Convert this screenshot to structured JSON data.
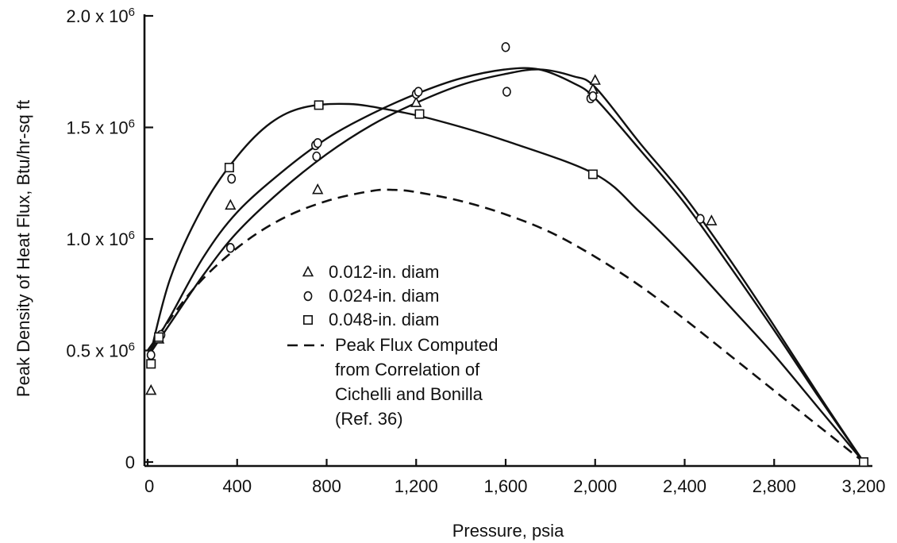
{
  "chart_data": {
    "type": "scatter",
    "xlabel": "Pressure, psia",
    "ylabel": "Peak Density of Heat Flux, Btu/hr-sq ft",
    "xlim": [
      0,
      3200
    ],
    "ylim": [
      0,
      2000000
    ],
    "x_ticks": [
      {
        "value": 0,
        "label": "0"
      },
      {
        "value": 400,
        "label": "400"
      },
      {
        "value": 800,
        "label": "800"
      },
      {
        "value": 1200,
        "label": "1,200"
      },
      {
        "value": 1600,
        "label": "1,600"
      },
      {
        "value": 2000,
        "label": "2,000"
      },
      {
        "value": 2400,
        "label": "2,400"
      },
      {
        "value": 2800,
        "label": "2,800"
      },
      {
        "value": 3200,
        "label": "3,200"
      }
    ],
    "y_ticks": [
      {
        "value": 0,
        "base": "0",
        "exp": ""
      },
      {
        "value": 500000,
        "base": "0.5 x 10",
        "exp": "6"
      },
      {
        "value": 1000000,
        "base": "1.0 x 10",
        "exp": "6"
      },
      {
        "value": 1500000,
        "base": "1.5 x 10",
        "exp": "6"
      },
      {
        "value": 2000000,
        "base": "2.0 x 10",
        "exp": "6"
      }
    ],
    "grid": false,
    "legend_position": "center",
    "series": [
      {
        "name": "0.012-in. diam",
        "marker": "triangle",
        "points": [
          [
            15,
            320000
          ],
          [
            50,
            550000
          ],
          [
            370,
            1150000
          ],
          [
            760,
            1220000
          ],
          [
            1200,
            1610000
          ],
          [
            1990,
            1670000
          ],
          [
            2000,
            1710000
          ],
          [
            2520,
            1080000
          ]
        ]
      },
      {
        "name": "0.024-in. diam",
        "marker": "circle",
        "points": [
          [
            15,
            480000
          ],
          [
            60,
            570000
          ],
          [
            370,
            960000
          ],
          [
            375,
            1270000
          ],
          [
            750,
            1420000
          ],
          [
            755,
            1370000
          ],
          [
            760,
            1430000
          ],
          [
            1200,
            1650000
          ],
          [
            1210,
            1660000
          ],
          [
            1600,
            1860000
          ],
          [
            1605,
            1660000
          ],
          [
            1980,
            1630000
          ],
          [
            1990,
            1640000
          ],
          [
            2470,
            1090000
          ]
        ]
      },
      {
        "name": "0.048-in. diam",
        "marker": "square",
        "points": [
          [
            15,
            440000
          ],
          [
            50,
            560000
          ],
          [
            365,
            1320000
          ],
          [
            765,
            1600000
          ],
          [
            1215,
            1560000
          ],
          [
            1990,
            1290000
          ],
          [
            3200,
            0
          ]
        ]
      },
      {
        "name": "Peak Flux Computed from Correlation of Cichelli and Bonilla (Ref. 36)",
        "style": "dashed",
        "points": [
          [
            0,
            500000
          ],
          [
            200,
            770000
          ],
          [
            400,
            960000
          ],
          [
            600,
            1090000
          ],
          [
            800,
            1170000
          ],
          [
            1000,
            1215000
          ],
          [
            1100,
            1220000
          ],
          [
            1200,
            1210000
          ],
          [
            1400,
            1170000
          ],
          [
            1600,
            1110000
          ],
          [
            1800,
            1030000
          ],
          [
            2000,
            920000
          ],
          [
            2200,
            790000
          ],
          [
            2400,
            640000
          ],
          [
            2600,
            480000
          ],
          [
            2800,
            320000
          ],
          [
            3000,
            160000
          ],
          [
            3200,
            0
          ]
        ]
      }
    ],
    "fit_curves": [
      {
        "for": "0.048-in. diam",
        "points": [
          [
            0,
            430000
          ],
          [
            100,
            820000
          ],
          [
            250,
            1150000
          ],
          [
            400,
            1370000
          ],
          [
            550,
            1520000
          ],
          [
            700,
            1590000
          ],
          [
            900,
            1605000
          ],
          [
            1100,
            1575000
          ],
          [
            1300,
            1530000
          ],
          [
            1600,
            1440000
          ],
          [
            2000,
            1290000
          ],
          [
            2200,
            1120000
          ],
          [
            2400,
            920000
          ],
          [
            2600,
            700000
          ],
          [
            2800,
            480000
          ],
          [
            3000,
            240000
          ],
          [
            3200,
            0
          ]
        ]
      },
      {
        "for": "0.024-in. diam",
        "points": [
          [
            0,
            480000
          ],
          [
            100,
            650000
          ],
          [
            250,
            920000
          ],
          [
            400,
            1120000
          ],
          [
            600,
            1300000
          ],
          [
            800,
            1450000
          ],
          [
            1000,
            1560000
          ],
          [
            1200,
            1650000
          ],
          [
            1400,
            1720000
          ],
          [
            1600,
            1760000
          ],
          [
            1750,
            1760000
          ],
          [
            1900,
            1700000
          ],
          [
            2000,
            1630000
          ],
          [
            2200,
            1400000
          ],
          [
            2400,
            1160000
          ],
          [
            2600,
            880000
          ],
          [
            2800,
            590000
          ],
          [
            3000,
            290000
          ],
          [
            3200,
            0
          ]
        ]
      },
      {
        "for": "0.012-in. diam",
        "points": [
          [
            0,
            470000
          ],
          [
            100,
            620000
          ],
          [
            250,
            840000
          ],
          [
            400,
            1030000
          ],
          [
            600,
            1220000
          ],
          [
            800,
            1380000
          ],
          [
            1000,
            1510000
          ],
          [
            1200,
            1610000
          ],
          [
            1400,
            1690000
          ],
          [
            1600,
            1740000
          ],
          [
            1750,
            1760000
          ],
          [
            1900,
            1730000
          ],
          [
            2000,
            1680000
          ],
          [
            2200,
            1430000
          ],
          [
            2400,
            1190000
          ],
          [
            2600,
            910000
          ],
          [
            2800,
            610000
          ],
          [
            3000,
            300000
          ],
          [
            3200,
            0
          ]
        ]
      }
    ],
    "legend": [
      {
        "marker": "triangle",
        "lines": [
          "0.012-in. diam"
        ]
      },
      {
        "marker": "circle",
        "lines": [
          "0.024-in. diam"
        ]
      },
      {
        "marker": "square",
        "lines": [
          "0.048-in. diam"
        ]
      },
      {
        "marker": "dashed",
        "lines": [
          "Peak Flux Computed",
          "from Correlation of",
          "Cichelli and Bonilla",
          "(Ref. 36)"
        ]
      }
    ]
  }
}
